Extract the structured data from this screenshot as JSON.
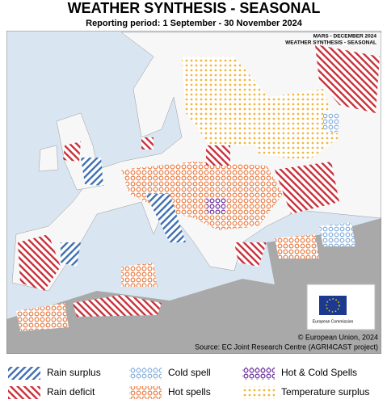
{
  "header": {
    "title": "WEATHER SYNTHESIS - SEASONAL",
    "subtitle": "Reporting period: 1 September - 30 November 2024"
  },
  "map": {
    "stamp": [
      "MARS - DECEMBER 2024",
      "WEATHER SYNTHESIS - SEASONAL"
    ],
    "logo": "European Commission",
    "credits": [
      "© European Union, 2024",
      "Source: EC Joint Research Centre (AGRI4CAST project)"
    ]
  },
  "legend": [
    {
      "label": "Rain surplus",
      "pattern": "rs"
    },
    {
      "label": "Cold spell",
      "pattern": "cs"
    },
    {
      "label": "Hot & Cold Spells",
      "pattern": "hc"
    },
    {
      "label": "Rain deficit",
      "pattern": "rd"
    },
    {
      "label": "Hot spells",
      "pattern": "hs"
    },
    {
      "label": "Temperature surplus",
      "pattern": "ts"
    }
  ]
}
